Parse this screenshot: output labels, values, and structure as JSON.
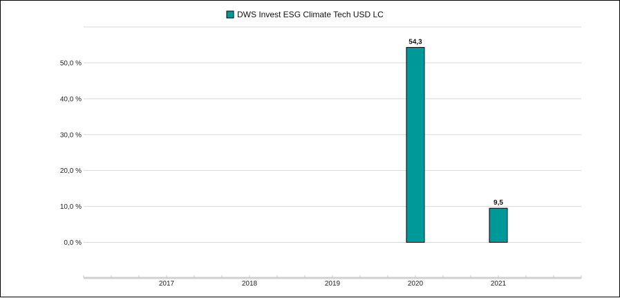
{
  "chart_data": {
    "type": "bar",
    "title": "",
    "xlabel": "",
    "ylabel": "",
    "categories": [
      "2017",
      "2018",
      "2019",
      "2020",
      "2021"
    ],
    "series": [
      {
        "name": "DWS Invest ESG Climate Tech  USD LC",
        "values": [
          null,
          null,
          null,
          54.3,
          9.5
        ],
        "value_labels": [
          "",
          "",
          "",
          "54,3",
          "9,5"
        ],
        "color": "#009999"
      }
    ],
    "y_ticks": [
      {
        "value": 0,
        "label": "0,0 %"
      },
      {
        "value": 10,
        "label": "10,0 %"
      },
      {
        "value": 20,
        "label": "20,0 %"
      },
      {
        "value": 30,
        "label": "30,0 %"
      },
      {
        "value": 40,
        "label": "40,0 %"
      },
      {
        "value": 50,
        "label": "50,0 %"
      }
    ],
    "ylim": [
      0,
      60
    ],
    "grid": true,
    "legend_position": "top-center"
  }
}
